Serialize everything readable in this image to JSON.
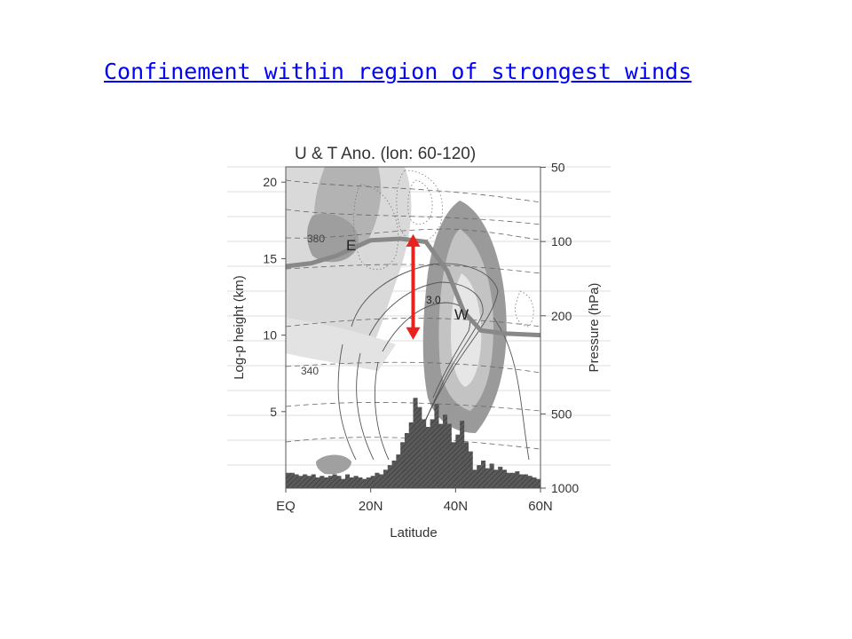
{
  "slide": {
    "title": "Confinement within region of strongest winds"
  },
  "chart_data": {
    "type": "contour",
    "title": "U & T Ano.  (lon: 60-120)",
    "xlabel": "Latitude",
    "ylabel": "Log-p height (km)",
    "ylabel_right": "Pressure (hPa)",
    "x_ticks": [
      {
        "value": 0,
        "label": "EQ"
      },
      {
        "value": 20,
        "label": "20N"
      },
      {
        "value": 40,
        "label": "40N"
      },
      {
        "value": 60,
        "label": "60N"
      }
    ],
    "xlim": [
      0,
      60
    ],
    "y_ticks": [
      5,
      10,
      15,
      20
    ],
    "ylim": [
      0,
      21
    ],
    "pressure_ticks": [
      {
        "hpa": 50,
        "label": "50"
      },
      {
        "hpa": 100,
        "label": "100"
      },
      {
        "hpa": 200,
        "label": "200"
      },
      {
        "hpa": 500,
        "label": "500"
      },
      {
        "hpa": 1000,
        "label": "1000"
      }
    ],
    "annotations": [
      "E",
      "W",
      "3.0",
      "380",
      "340"
    ],
    "topography_profile": {
      "lat": [
        0,
        1,
        2,
        3,
        4,
        5,
        6,
        7,
        8,
        9,
        10,
        11,
        12,
        13,
        14,
        15,
        16,
        17,
        18,
        19,
        20,
        21,
        22,
        23,
        24,
        25,
        26,
        27,
        28,
        29,
        30,
        31,
        32,
        33,
        34,
        35,
        36,
        37,
        38,
        39,
        40,
        41,
        42,
        43,
        44,
        45,
        46,
        47,
        48,
        49,
        50,
        51,
        52,
        53,
        54,
        55,
        56,
        57,
        58,
        59,
        60
      ],
      "height_km": [
        1.0,
        1.0,
        0.9,
        0.8,
        0.9,
        0.8,
        0.9,
        0.7,
        0.8,
        0.7,
        0.8,
        0.9,
        0.8,
        0.6,
        0.9,
        0.7,
        0.8,
        0.7,
        0.6,
        0.7,
        0.8,
        1.0,
        0.9,
        1.2,
        1.5,
        1.8,
        2.2,
        3.0,
        3.6,
        4.3,
        5.9,
        5.3,
        4.5,
        4.0,
        4.5,
        5.5,
        4.2,
        4.8,
        4.2,
        3.0,
        3.5,
        4.4,
        3.0,
        2.4,
        1.2,
        1.5,
        1.8,
        1.3,
        1.6,
        1.2,
        1.4,
        1.2,
        1.0,
        1.0,
        1.1,
        0.9,
        0.9,
        0.8,
        0.7,
        0.6,
        0.6
      ]
    },
    "tropopause": {
      "lat": [
        0,
        6,
        12,
        20,
        27,
        33,
        38,
        42,
        46,
        52,
        60
      ],
      "height_km": [
        14.5,
        14.7,
        15.2,
        16.2,
        16.3,
        16.1,
        14.2,
        11.5,
        10.3,
        10.1,
        10.0
      ]
    },
    "highlight_arrow": {
      "lat": 30,
      "from_km": 9.7,
      "to_km": 16.6
    },
    "colors": {
      "arrow": "#e8231e",
      "title_link": "#0000ff",
      "tropopause": "#888888",
      "topography": "#555555"
    }
  }
}
